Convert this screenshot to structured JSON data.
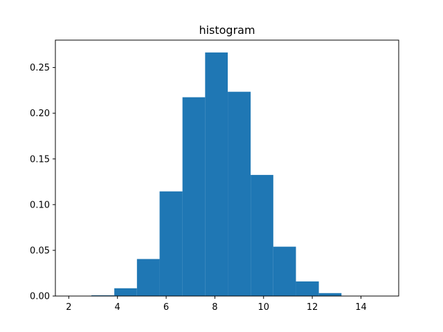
{
  "chart_data": {
    "type": "bar",
    "title": "histogram",
    "xlabel": "",
    "ylabel": "",
    "bins": [
      {
        "x0": 2.0,
        "x1": 2.93,
        "value": 0.0
      },
      {
        "x0": 2.93,
        "x1": 3.87,
        "value": 0.0008
      },
      {
        "x0": 3.87,
        "x1": 4.8,
        "value": 0.0085
      },
      {
        "x0": 4.8,
        "x1": 5.73,
        "value": 0.0405
      },
      {
        "x0": 5.73,
        "x1": 6.67,
        "value": 0.1145
      },
      {
        "x0": 6.67,
        "x1": 7.6,
        "value": 0.2175
      },
      {
        "x0": 7.6,
        "x1": 8.53,
        "value": 0.2665
      },
      {
        "x0": 8.53,
        "x1": 9.47,
        "value": 0.2235
      },
      {
        "x0": 9.47,
        "x1": 10.4,
        "value": 0.1325
      },
      {
        "x0": 10.4,
        "x1": 11.33,
        "value": 0.054
      },
      {
        "x0": 11.33,
        "x1": 12.27,
        "value": 0.016
      },
      {
        "x0": 12.27,
        "x1": 13.2,
        "value": 0.0032
      },
      {
        "x0": 13.2,
        "x1": 14.13,
        "value": 0.0
      },
      {
        "x0": 14.13,
        "x1": 15.0,
        "value": 0.0
      }
    ],
    "xlim": [
      1.45,
      15.55
    ],
    "ylim": [
      0,
      0.28
    ],
    "xticks": [
      2,
      4,
      6,
      8,
      10,
      12,
      14
    ],
    "xtick_labels": [
      "2",
      "4",
      "6",
      "8",
      "10",
      "12",
      "14"
    ],
    "yticks": [
      0.0,
      0.05,
      0.1,
      0.15,
      0.2,
      0.25
    ],
    "ytick_labels": [
      "0.00",
      "0.05",
      "0.10",
      "0.15",
      "0.20",
      "0.25"
    ],
    "grid": false,
    "bar_color": "#1f77b4"
  }
}
